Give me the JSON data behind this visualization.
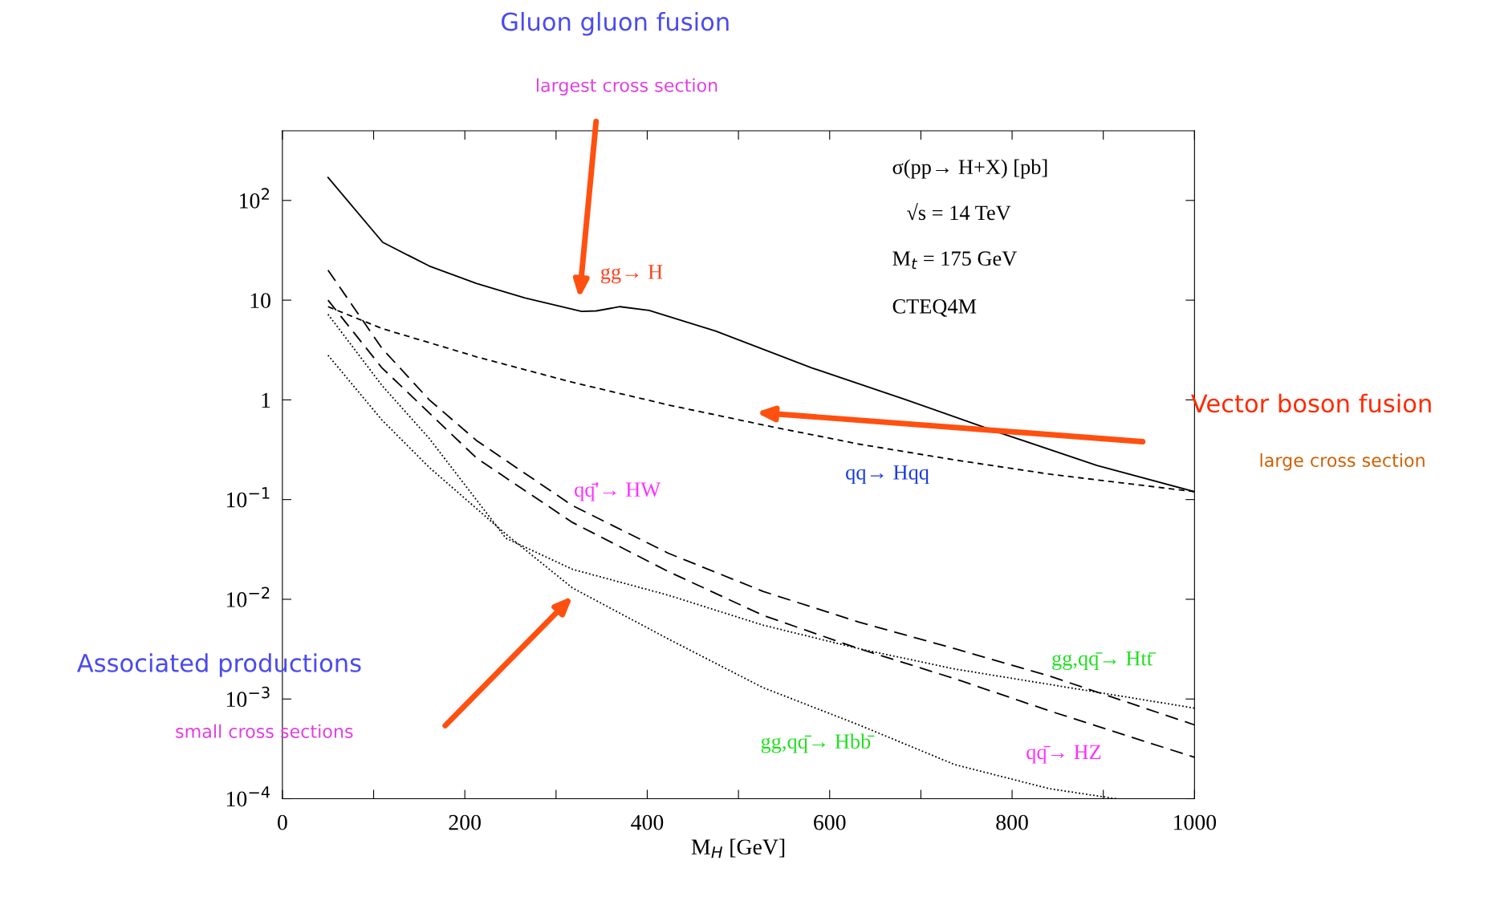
{
  "chart_data": {
    "type": "line",
    "xlabel": "M$_{H}$ [GeV]",
    "log": "y",
    "xlim": [
      0,
      1000
    ],
    "ylim": [
      0.0001,
      500
    ],
    "xticks": [
      0,
      {
        "value": 100,
        "label": null
      },
      200,
      {
        "value": 300,
        "label": null
      },
      400,
      {
        "value": 500,
        "label": null
      },
      600,
      {
        "value": 700,
        "label": null
      },
      800,
      {
        "value": 900,
        "label": null
      },
      1000
    ],
    "yticks": [
      {
        "value": 0.0001,
        "label": "10$^{−4}$"
      },
      {
        "value": 0.001,
        "label": "10$^{−3}$"
      },
      {
        "value": 0.01,
        "label": "10$^{−2}$"
      },
      {
        "value": 0.1,
        "label": "10$^{−1}$"
      },
      1,
      10,
      {
        "value": 100,
        "label": "10$^{2}$"
      }
    ],
    "grid": false,
    "legend": false,
    "series": [
      {
        "color": "#000000",
        "line_style": "solid",
        "x": [
          50,
          110,
          161,
          213,
          266,
          328,
          344,
          370,
          402,
          475,
          580,
          684,
          789,
          893,
          1000
        ],
        "values": [
          170,
          38,
          22,
          14.7,
          10.5,
          7.7,
          7.8,
          8.6,
          7.9,
          4.9,
          2.1,
          1.0,
          0.46,
          0.22,
          0.12
        ]
      },
      {
        "color": "#000000",
        "line_style": "dashed",
        "x": [
          50,
          109,
          213,
          318,
          423,
          527,
          632,
          737,
          841,
          1000
        ],
        "values": [
          8.6,
          5.2,
          2.7,
          1.5,
          0.89,
          0.56,
          0.36,
          0.25,
          0.18,
          0.12
        ]
      },
      {
        "color": "#000000",
        "line_style": "longdash",
        "x": [
          50,
          109,
          161,
          213,
          318,
          423,
          527,
          632,
          737,
          841,
          1000
        ],
        "values": [
          20,
          3.3,
          1.0,
          0.39,
          0.087,
          0.029,
          0.012,
          0.0059,
          0.0032,
          0.0017,
          0.00055
        ]
      },
      {
        "color": "#000000",
        "line_style": "longdash",
        "x": [
          50,
          109,
          213,
          318,
          423,
          527,
          632,
          737,
          841,
          1000
        ],
        "values": [
          10,
          2.1,
          0.26,
          0.059,
          0.019,
          0.0069,
          0.0032,
          0.0016,
          0.00076,
          0.00026
        ]
      },
      {
        "color": "#000000",
        "line_style": "dotted",
        "x": [
          50,
          109,
          161,
          245,
          318,
          423,
          527,
          632,
          737,
          841,
          1000
        ],
        "values": [
          7.2,
          1.4,
          0.41,
          0.041,
          0.02,
          0.011,
          0.0055,
          0.0032,
          0.002,
          0.0014,
          0.00081
        ]
      },
      {
        "color": "#000000",
        "line_style": "dotted",
        "x": [
          50,
          109,
          161,
          245,
          318,
          423,
          527,
          632,
          737,
          841,
          914
        ],
        "values": [
          2.8,
          0.63,
          0.21,
          0.045,
          0.013,
          0.004,
          0.0013,
          0.00055,
          0.00022,
          0.000126,
          0.0001
        ]
      }
    ],
    "annotations": [
      "Gluon gluon fusion",
      "largest cross section",
      "Vector boson fusion",
      "large cross section",
      "Associated productions",
      "small cross sections",
      "σ(pp→ H+X) [pb]",
      "√s = 14 TeV",
      "M$_{t}$ = 175 GeV",
      "CTEQ4M",
      "gg→ H",
      "qq̄'→ HW",
      "qq→ Hqq",
      "gg,qq̄→ Htt̄",
      "gg,qq̄→ Hbb̄",
      "qq̄→ HZ"
    ]
  }
}
